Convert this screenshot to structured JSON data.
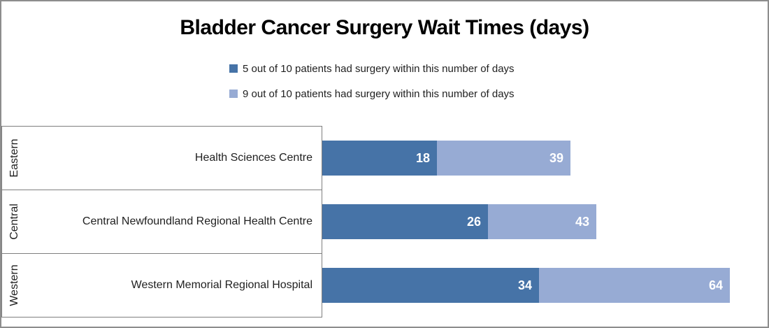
{
  "chart_data": {
    "type": "bar",
    "orientation": "horizontal_stacked",
    "title": "Bladder Cancer Surgery Wait Times (days)",
    "xlabel": "",
    "ylabel": "",
    "axis_lines": false,
    "gridlines": false,
    "legend_position": "top-center",
    "region_groups": [
      "Eastern",
      "Central",
      "Western"
    ],
    "categories": [
      "Health Sciences Centre",
      "Central Newfoundland Regional Health Centre",
      "Western Memorial Regional Hospital"
    ],
    "series": [
      {
        "name": "5 out of 10 patients had surgery within this number of days",
        "color": "#4673A7",
        "values": [
          18,
          26,
          34
        ]
      },
      {
        "name": "9 out of 10 patients had surgery within this number of days",
        "color": "#97ABD4",
        "values": [
          39,
          43,
          64
        ]
      }
    ],
    "value_labels": "white bold, right-aligned inside segments; second series values are cumulative totals (light segment spans from series-1 value to series-2 value)",
    "xlim": [
      0,
      70
    ]
  },
  "style": {
    "outer_border_color": "#8d8d8d",
    "row_border_color": "#7f7f7f",
    "background": "#ffffff",
    "title_color": "#000000",
    "label_color": "#1f1f1f",
    "value_label_color": "#ffffff"
  }
}
